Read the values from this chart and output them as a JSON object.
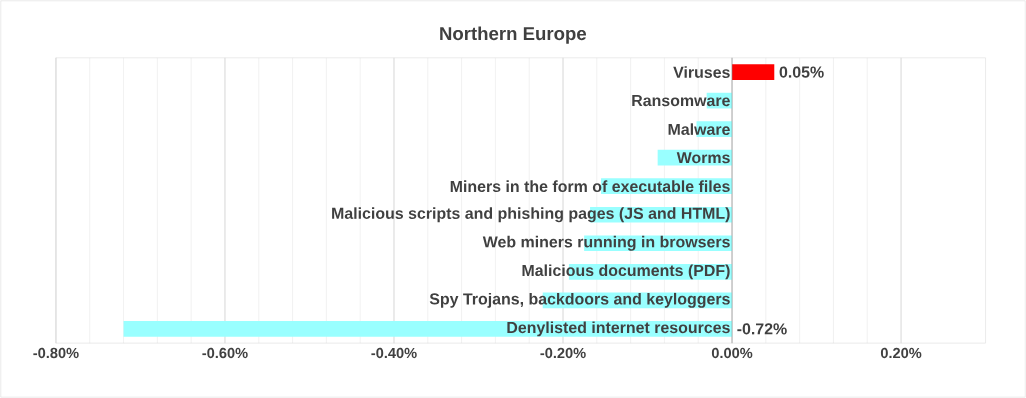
{
  "chart_data": {
    "type": "bar",
    "orientation": "horizontal",
    "title": "Northern Europe",
    "categories": [
      "Viruses",
      "Ransomware",
      "Malware",
      "Worms",
      "Miners in the form of executable files",
      "Malicious scripts and phishing pages (JS and HTML)",
      "Web miners running in browsers",
      "Malicious documents (PDF)",
      "Spy Trojans, backdoors and keyloggers",
      "Denylisted internet resources"
    ],
    "values": [
      0.05,
      -0.03,
      -0.042,
      -0.088,
      -0.155,
      -0.168,
      -0.175,
      -0.193,
      -0.224,
      -0.72
    ],
    "colors": [
      "#ff0000",
      "#99ffff",
      "#99ffff",
      "#99ffff",
      "#99ffff",
      "#99ffff",
      "#99ffff",
      "#99ffff",
      "#99ffff",
      "#99ffff"
    ],
    "value_labels": [
      "0.05%",
      null,
      null,
      null,
      null,
      null,
      null,
      null,
      null,
      "-0.72%"
    ],
    "xlim": [
      -0.8,
      0.3
    ],
    "xticks": [
      {
        "value": -0.8,
        "label": "-0.80%"
      },
      {
        "value": -0.6,
        "label": "-0.60%"
      },
      {
        "value": -0.4,
        "label": "-0.40%"
      },
      {
        "value": -0.2,
        "label": "-0.20%"
      },
      {
        "value": 0,
        "label": "0.00%"
      },
      {
        "value": 0.2,
        "label": "0.20%"
      }
    ],
    "grid": true
  }
}
